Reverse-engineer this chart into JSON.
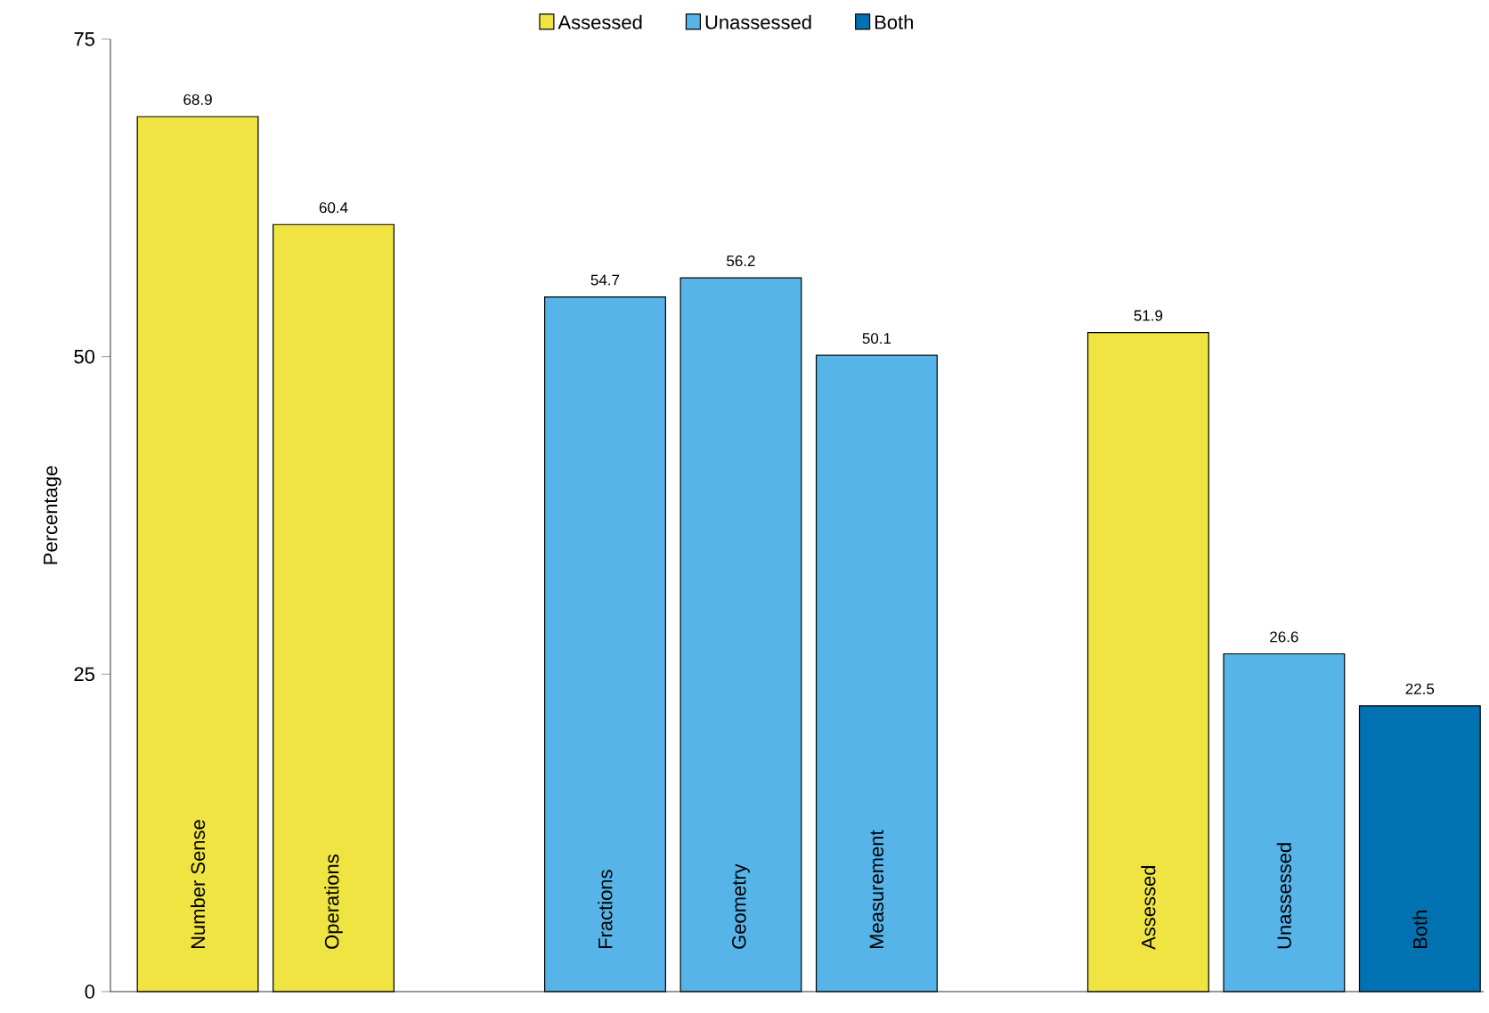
{
  "chart_data": {
    "type": "bar",
    "ylabel": "Percentage",
    "categories": [
      "Number Sense",
      "Operations",
      null,
      "Fractions",
      "Geometry",
      "Measurement",
      null,
      "Assessed",
      "Unassessed",
      "Both"
    ],
    "series": [
      {
        "name": "Assessed",
        "color": "#f0e442",
        "values": [
          68.9,
          60.4,
          null,
          null,
          null,
          null,
          null,
          51.9,
          null,
          null
        ]
      },
      {
        "name": "Unassessed",
        "color": "#56b4e9",
        "values": [
          null,
          null,
          null,
          54.7,
          56.2,
          50.1,
          null,
          null,
          26.6,
          null
        ]
      },
      {
        "name": "Both",
        "color": "#0072b2",
        "values": [
          null,
          null,
          null,
          null,
          null,
          null,
          null,
          null,
          null,
          22.5
        ]
      }
    ],
    "ylim": [
      0,
      75
    ],
    "yticks": [
      0,
      25,
      50,
      75
    ],
    "data_labels": true,
    "legend": "top",
    "grid": false
  }
}
